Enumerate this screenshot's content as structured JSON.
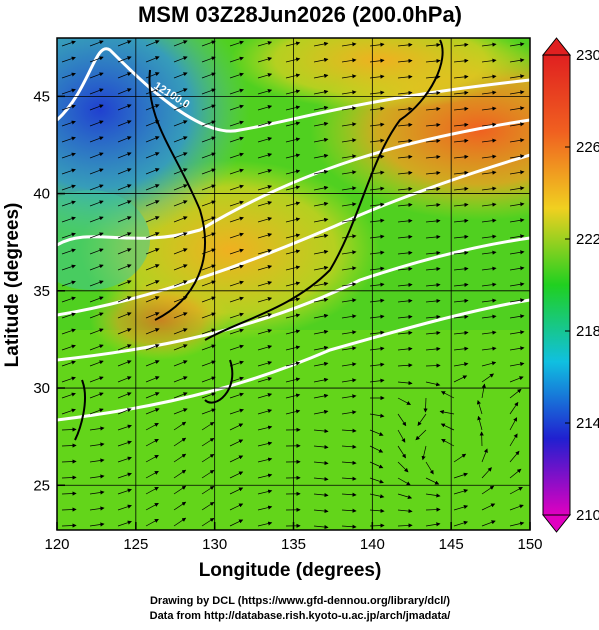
{
  "chart_data": {
    "type": "map",
    "title": "MSM 03Z28Jun2026 (200.0hPa)",
    "x_label": "Longitude (degrees)",
    "y_label": "Latitude  (degrees)",
    "xlim": [
      120,
      150
    ],
    "xticks": [
      120,
      125,
      130,
      135,
      140,
      145,
      150
    ],
    "ylim": [
      22.7,
      48
    ],
    "yticks": [
      25,
      30,
      35,
      40,
      45
    ],
    "grid": true,
    "contour_labels": [
      "12100.0"
    ],
    "colorbar": {
      "range": [
        210,
        230
      ],
      "ticks": [
        210,
        214,
        218,
        222,
        226,
        230
      ],
      "colors": [
        "#e000c0",
        "#2020d0",
        "#10c0e0",
        "#20d020",
        "#f0d020",
        "#f06020",
        "#e02020"
      ]
    },
    "credits": [
      "Drawing by DCL (https://www.gfd-dennou.org/library/dcl/)",
      "Data from http://database.rish.kyoto-u.ac.jp/arch/jmadata/"
    ]
  }
}
